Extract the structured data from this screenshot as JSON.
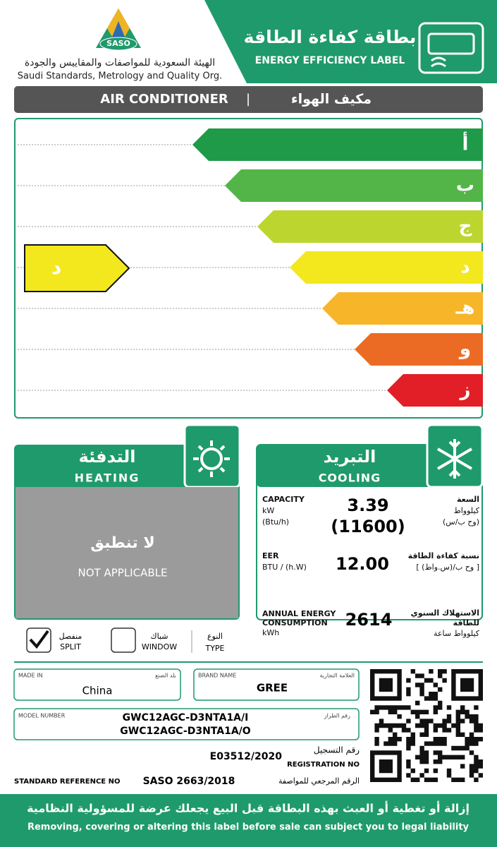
{
  "header": {
    "logo_text": "SASO",
    "org_ar": "الهيئة السعودية للمواصفات والمقاييس والجودة",
    "org_en": "Saudi Standards, Metrology and Quality Org.",
    "label_ar": "بطاقة كفاءة الطاقة",
    "label_en": "ENERGY EFFICIENCY LABEL"
  },
  "product": {
    "en": "AIR CONDITIONER",
    "separator": "|",
    "ar": "مكيف الهواء"
  },
  "rating": {
    "classes": [
      "أ",
      "ب",
      "ج",
      "د",
      "هـ",
      "و",
      "ز"
    ],
    "selected": "د"
  },
  "heating": {
    "title_ar": "التدفئة",
    "title_en": "HEATING",
    "na_ar": "لا تنطبق",
    "na_en": "NOT APPLICABLE"
  },
  "cooling": {
    "title_ar": "التبريد",
    "title_en": "COOLING",
    "capacity": {
      "label_en": "CAPACITY",
      "unit_kw": "kW",
      "unit_btu": "(Btu/h)",
      "value_kw": "3.39",
      "value_btu": "(11600)",
      "label_ar": "السعة",
      "unit_kw_ar": "كيلوواط",
      "unit_btu_ar": "(وح ب/س)"
    },
    "eer": {
      "label_en": "EER",
      "unit": "BTU / (h.W)",
      "value": "12.00",
      "label_ar": "نسبة كفاءة الطاقة",
      "unit_ar": "[ وح ب/(س.واط) ]"
    },
    "annual": {
      "label_en": [
        "ANNUAL ENERGY",
        "CONSUMPTION"
      ],
      "unit": "kWh",
      "value": "2614",
      "label_ar": [
        "الاستهلاك السنوي",
        "للطاقة"
      ],
      "unit_ar": "كيلوواط ساعة"
    }
  },
  "type": {
    "split_ar": "منفصل",
    "split_en": "SPLIT",
    "window_ar": "شباك",
    "window_en": "WINDOW",
    "type_ar": "النوع",
    "type_en": "TYPE"
  },
  "made_in": {
    "label_en": "MADE IN",
    "label_ar": "بلد الصنع",
    "value": "China"
  },
  "brand": {
    "label_en": "BRAND NAME",
    "label_ar": "العلامة التجارية",
    "value": "GREE"
  },
  "model": {
    "label_en": "MODEL NUMBER",
    "label_ar": "رقم الطراز",
    "values": [
      "GWC12AGC-D3NTA1A/I",
      "GWC12AGC-D3NTA1A/O"
    ]
  },
  "registration": {
    "value": "E03512/2020",
    "label_ar": "رقم التسجيل",
    "label_en": "REGISTRATION NO"
  },
  "standard": {
    "label_en": "STANDARD REFERENCE NO",
    "value": "SASO 2663/2018",
    "label_ar": "الرقم المرجعي للمواصفة"
  },
  "footer": {
    "ar": "إزالة أو تغطية أو العبث بهذه البطاقة قبل البيع يجعلك عرضة للمسؤولية النظامية",
    "en": "Removing, covering or altering this label before sale can subject you to legal liability"
  }
}
